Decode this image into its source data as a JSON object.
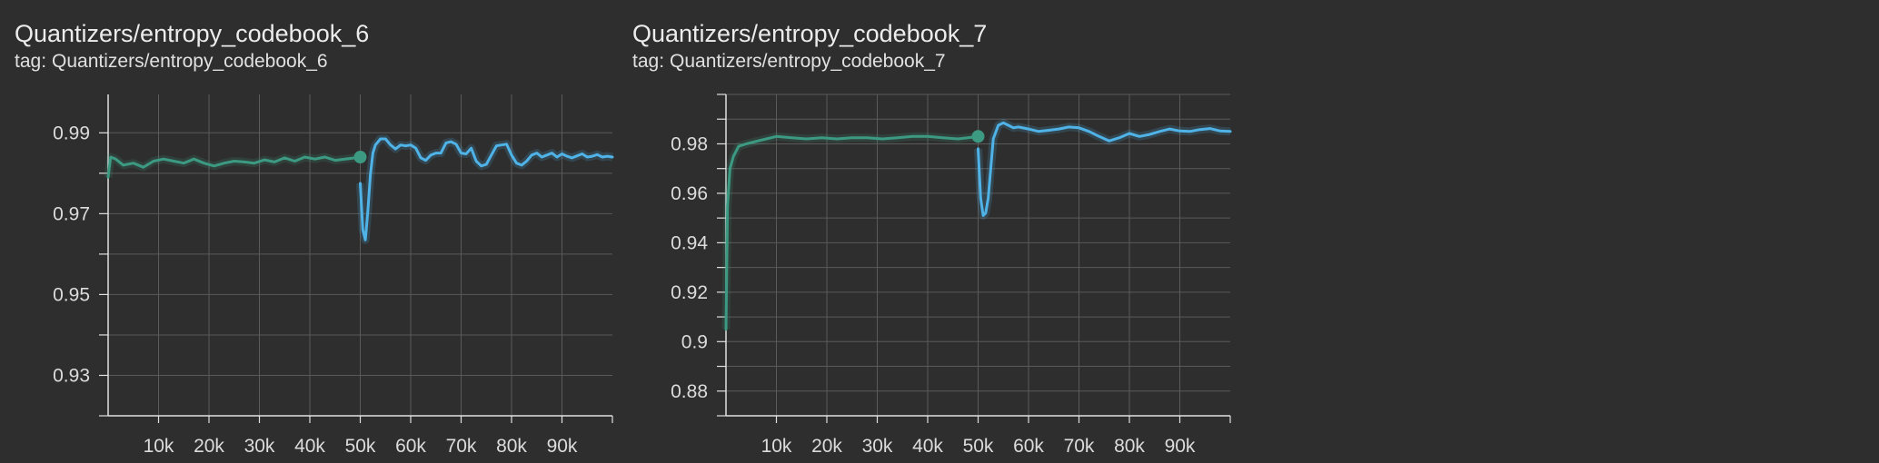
{
  "charts": [
    {
      "title": "Quantizers/entropy_codebook_6",
      "tag_prefix": "tag:",
      "tag": "Quantizers/entropy_codebook_6"
    },
    {
      "title": "Quantizers/entropy_codebook_7",
      "tag_prefix": "tag:",
      "tag": "Quantizers/entropy_codebook_7"
    }
  ],
  "colors": {
    "background": "#2e2e2e",
    "grid": "#5a5a5a",
    "axis": "#e0e0e0",
    "series_green": "#3d9a82",
    "series_blue": "#4fb3e8"
  },
  "chart_data": [
    {
      "type": "line",
      "title": "Quantizers/entropy_codebook_6",
      "xlabel": "",
      "ylabel": "",
      "xlim": [
        0,
        100000
      ],
      "ylim": [
        0.92,
        0.9995
      ],
      "x_ticks": [
        10000,
        20000,
        30000,
        40000,
        50000,
        60000,
        70000,
        80000,
        90000
      ],
      "x_tick_labels": [
        "10k",
        "20k",
        "30k",
        "40k",
        "50k",
        "60k",
        "70k",
        "80k",
        "90k"
      ],
      "y_ticks": [
        0.93,
        0.95,
        0.97,
        0.99
      ],
      "y_tick_labels": [
        "0.93",
        "0.95",
        "0.97",
        "0.99"
      ],
      "grid": true,
      "series": [
        {
          "color": "#3d9a82",
          "x": [
            0,
            500,
            1500,
            3000,
            5000,
            7000,
            9000,
            11000,
            13000,
            15000,
            17000,
            19000,
            21000,
            23000,
            25000,
            27000,
            29000,
            31000,
            33000,
            35000,
            37000,
            39000,
            41000,
            43000,
            45000,
            47000,
            49000,
            50000
          ],
          "y": [
            0.979,
            0.984,
            0.9835,
            0.982,
            0.9825,
            0.9815,
            0.983,
            0.9835,
            0.983,
            0.9825,
            0.9835,
            0.9825,
            0.9818,
            0.9825,
            0.983,
            0.9828,
            0.9825,
            0.9833,
            0.9828,
            0.9838,
            0.983,
            0.984,
            0.9835,
            0.984,
            0.9832,
            0.9835,
            0.9838,
            0.984
          ],
          "endpoint_marker": true
        },
        {
          "color": "#4fb3e8",
          "x": [
            50000,
            50500,
            51000,
            51500,
            52000,
            52500,
            53000,
            54000,
            55000,
            56000,
            57000,
            58000,
            59000,
            60000,
            61000,
            62000,
            63000,
            64000,
            65000,
            66000,
            67000,
            68000,
            69000,
            70000,
            71000,
            72000,
            73000,
            74000,
            75000,
            76000,
            77000,
            78000,
            79000,
            80000,
            81000,
            82000,
            83000,
            84000,
            85000,
            86000,
            87000,
            88000,
            89000,
            90000,
            91000,
            92000,
            93000,
            94000,
            95000,
            96000,
            97000,
            98000,
            99000,
            100000
          ],
          "y": [
            0.9775,
            0.966,
            0.9635,
            0.9705,
            0.9795,
            0.985,
            0.987,
            0.9885,
            0.9885,
            0.987,
            0.986,
            0.987,
            0.9868,
            0.987,
            0.9862,
            0.9838,
            0.9832,
            0.9845,
            0.985,
            0.985,
            0.9875,
            0.9878,
            0.9872,
            0.985,
            0.9848,
            0.9862,
            0.983,
            0.9818,
            0.9822,
            0.9845,
            0.9868,
            0.987,
            0.9872,
            0.9845,
            0.9825,
            0.982,
            0.983,
            0.9845,
            0.985,
            0.984,
            0.9845,
            0.985,
            0.984,
            0.9848,
            0.9842,
            0.9838,
            0.9843,
            0.9848,
            0.984,
            0.9842,
            0.9846,
            0.984,
            0.9842,
            0.984
          ]
        }
      ]
    },
    {
      "type": "line",
      "title": "Quantizers/entropy_codebook_7",
      "xlabel": "",
      "ylabel": "",
      "xlim": [
        0,
        100000
      ],
      "ylim": [
        0.87,
        1.0
      ],
      "x_ticks": [
        10000,
        20000,
        30000,
        40000,
        50000,
        60000,
        70000,
        80000,
        90000
      ],
      "x_tick_labels": [
        "10k",
        "20k",
        "30k",
        "40k",
        "50k",
        "60k",
        "70k",
        "80k",
        "90k"
      ],
      "y_ticks": [
        0.88,
        0.9,
        0.92,
        0.94,
        0.96,
        0.98
      ],
      "y_tick_labels": [
        "0.88",
        "0.9",
        "0.92",
        "0.94",
        "0.96",
        "0.98"
      ],
      "grid": true,
      "series": [
        {
          "color": "#3d9a82",
          "x": [
            0,
            300,
            800,
            1500,
            2500,
            4000,
            6000,
            8000,
            10000,
            13000,
            16000,
            19000,
            22000,
            25000,
            28000,
            31000,
            34000,
            37000,
            40000,
            43000,
            46000,
            48000,
            50000
          ],
          "y": [
            0.905,
            0.955,
            0.97,
            0.975,
            0.979,
            0.98,
            0.981,
            0.982,
            0.983,
            0.9825,
            0.982,
            0.9825,
            0.982,
            0.9825,
            0.9825,
            0.982,
            0.9825,
            0.983,
            0.983,
            0.9825,
            0.982,
            0.9825,
            0.983
          ],
          "endpoint_marker": true
        },
        {
          "color": "#4fb3e8",
          "x": [
            50000,
            50500,
            51000,
            51500,
            52000,
            52500,
            53000,
            54000,
            55000,
            56000,
            57000,
            58000,
            60000,
            62000,
            64000,
            66000,
            68000,
            70000,
            72000,
            74000,
            76000,
            78000,
            80000,
            82000,
            84000,
            86000,
            88000,
            90000,
            92000,
            94000,
            96000,
            98000,
            100000
          ],
          "y": [
            0.978,
            0.958,
            0.951,
            0.952,
            0.958,
            0.97,
            0.982,
            0.9875,
            0.9885,
            0.9875,
            0.9865,
            0.9868,
            0.986,
            0.985,
            0.9855,
            0.986,
            0.9868,
            0.9865,
            0.985,
            0.983,
            0.9812,
            0.9825,
            0.9842,
            0.983,
            0.9838,
            0.985,
            0.986,
            0.9852,
            0.985,
            0.9858,
            0.9862,
            0.9852,
            0.985
          ]
        }
      ]
    }
  ]
}
